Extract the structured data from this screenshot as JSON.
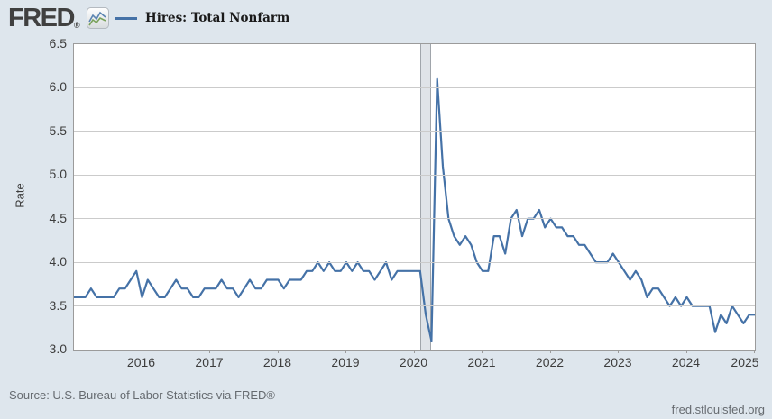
{
  "header": {
    "logo": "FRED",
    "registered_mark": "®",
    "legend_label": "Hires: Total Nonfarm"
  },
  "chart_data": {
    "type": "line",
    "title": "Hires: Total Nonfarm",
    "series": [
      {
        "name": "Hires: Total Nonfarm",
        "color": "#4572a7",
        "start": "2015-01",
        "end": "2025-01",
        "frequency": "monthly",
        "values": [
          3.6,
          3.6,
          3.6,
          3.7,
          3.6,
          3.6,
          3.6,
          3.6,
          3.7,
          3.7,
          3.8,
          3.9,
          3.6,
          3.8,
          3.7,
          3.6,
          3.6,
          3.7,
          3.8,
          3.7,
          3.7,
          3.6,
          3.6,
          3.7,
          3.7,
          3.7,
          3.8,
          3.7,
          3.7,
          3.6,
          3.7,
          3.8,
          3.7,
          3.7,
          3.8,
          3.8,
          3.8,
          3.7,
          3.8,
          3.8,
          3.8,
          3.9,
          3.9,
          4.0,
          3.9,
          4.0,
          3.9,
          3.9,
          4.0,
          3.9,
          4.0,
          3.9,
          3.9,
          3.8,
          3.9,
          4.0,
          3.8,
          3.9,
          3.9,
          3.9,
          3.9,
          3.9,
          3.4,
          3.1,
          6.1,
          5.1,
          4.5,
          4.3,
          4.2,
          4.3,
          4.2,
          4.0,
          3.9,
          3.9,
          4.3,
          4.3,
          4.1,
          4.5,
          4.6,
          4.3,
          4.5,
          4.5,
          4.6,
          4.4,
          4.5,
          4.4,
          4.4,
          4.3,
          4.3,
          4.2,
          4.2,
          4.1,
          4.0,
          4.0,
          4.0,
          4.1,
          4.0,
          3.9,
          3.8,
          3.9,
          3.8,
          3.6,
          3.7,
          3.7,
          3.6,
          3.5,
          3.6,
          3.5,
          3.6,
          3.5,
          3.5,
          3.5,
          3.5,
          3.2,
          3.4,
          3.3,
          3.5,
          3.4,
          3.3,
          3.4,
          3.4
        ]
      }
    ],
    "xlabel": "",
    "ylabel": "Rate",
    "ylim": [
      3.0,
      6.5
    ],
    "y_tick_labels": [
      "6.5",
      "6.0",
      "5.5",
      "5.0",
      "4.5",
      "4.0",
      "3.5",
      "3.0"
    ],
    "x_tick_labels": [
      "2016",
      "2017",
      "2018",
      "2019",
      "2020",
      "2021",
      "2022",
      "2023",
      "2024",
      "2025"
    ],
    "grid": "horizontal",
    "legend_position": "top",
    "recession_band": {
      "from": "2020-02",
      "to": "2020-04"
    }
  },
  "footer": {
    "source": "Source: U.S. Bureau of Labor Statistics via FRED®",
    "site": "fred.stlouisfed.org"
  },
  "colors": {
    "background": "#dee6ed",
    "plot_background": "#ffffff",
    "line": "#4572a7",
    "gridline": "#cbcbcb",
    "plot_border": "#9b9b9b",
    "recession_band": "#dfe3e8",
    "text": "#3d3d3d",
    "footer_text": "#666b70"
  }
}
